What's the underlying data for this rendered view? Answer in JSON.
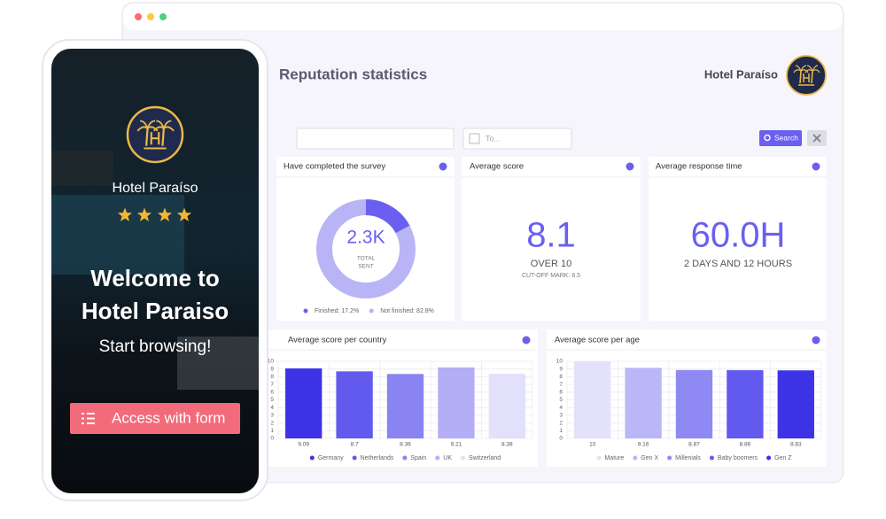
{
  "window": {
    "title": "Reputation statistics",
    "hotel": "Hotel Paraíso"
  },
  "filters": {
    "date_placeholder": "To...",
    "search": "Search"
  },
  "cards": [
    {
      "title": "Average score",
      "value": "8.1",
      "sub": "OVER 10",
      "note": "CUT-OFF MARK: 6.5"
    },
    {
      "title": "Average response time",
      "value": "60.0H",
      "sub": "2 DAYS AND 12 HOURS"
    }
  ],
  "phone": {
    "hotel": "Hotel Paraíso",
    "welcome_1": "Welcome to",
    "welcome_2": "Hotel Paraiso",
    "cta": "Start browsing!",
    "button": "Access with form"
  },
  "chart_data": [
    {
      "type": "donut",
      "title": "Have completed the survey",
      "center_value": "2.3K",
      "center_label_1": "TOTAL",
      "center_label_2": "SENT",
      "categories": [
        "Finished",
        "Not finished"
      ],
      "values": [
        17.2,
        82.8
      ],
      "value_labels": [
        "Finished: 17.2%",
        "Not finished: 82.8%"
      ],
      "colors": [
        "#6a5ff0",
        "#b9b4f6"
      ]
    },
    {
      "type": "bar",
      "title": "Average score per country",
      "categories": [
        "Germany",
        "Netherlands",
        "Spain",
        "UK",
        "Switzerland"
      ],
      "values": [
        9.09,
        8.7,
        8.36,
        9.21,
        8.38
      ],
      "colors": [
        "#3d33e6",
        "#6259ef",
        "#8a83f2",
        "#b3aef6",
        "#e2e0fa"
      ],
      "ylim": [
        0,
        10
      ],
      "yticks": [
        0,
        1,
        2,
        3,
        4,
        5,
        6,
        7,
        8,
        9,
        10
      ],
      "grid": true
    },
    {
      "type": "bar",
      "title": "Average score per age",
      "categories": [
        "Mature",
        "Gen X",
        "Millenials",
        "Baby boomers",
        "Gen Z"
      ],
      "values": [
        10,
        9.16,
        8.87,
        8.86,
        8.83
      ],
      "colors": [
        "#e4e2fa",
        "#bab6f7",
        "#8f89f3",
        "#6259ef",
        "#3d33e6"
      ],
      "ylim": [
        0,
        10
      ],
      "yticks": [
        0,
        1,
        2,
        3,
        4,
        5,
        6,
        7,
        8,
        9,
        10
      ],
      "grid": true
    }
  ]
}
